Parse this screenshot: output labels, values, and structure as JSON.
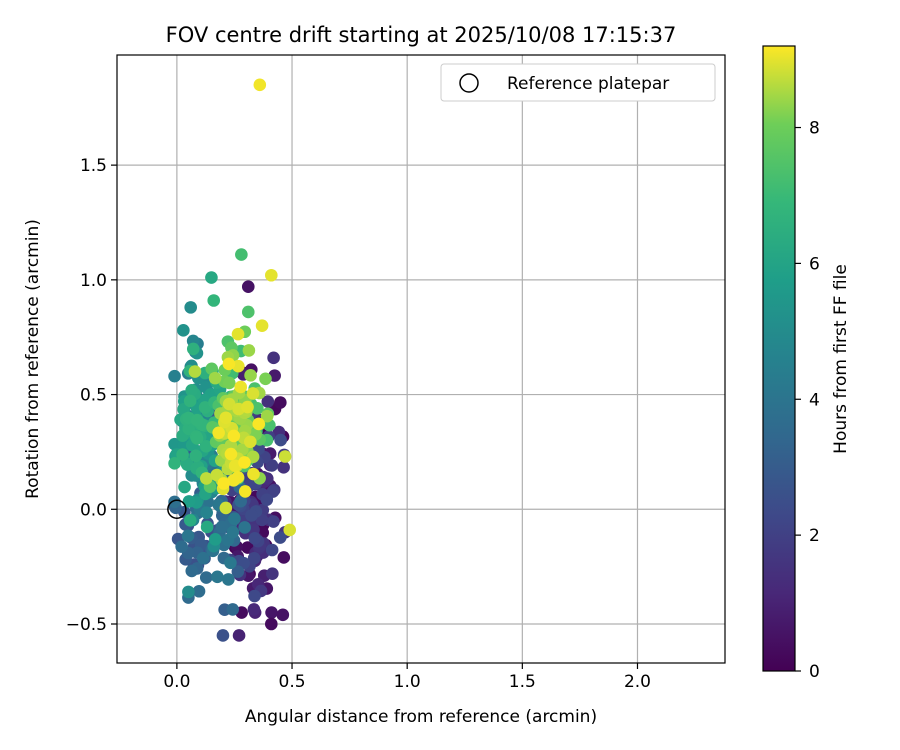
{
  "chart_data": {
    "type": "scatter",
    "title": "FOV centre drift starting at 2025/10/08 17:15:37",
    "xlabel": "Angular distance from reference (arcmin)",
    "ylabel": "Rotation from reference (arcmin)",
    "xlim": [
      -0.26,
      2.38
    ],
    "ylim": [
      -0.67,
      1.98
    ],
    "xticks": [
      0.0,
      0.5,
      1.0,
      1.5,
      2.0
    ],
    "xtick_labels": [
      "0.0",
      "0.5",
      "1.0",
      "1.5",
      "2.0"
    ],
    "yticks": [
      -0.5,
      0.0,
      0.5,
      1.0,
      1.5
    ],
    "ytick_labels": [
      "−0.5",
      "0.0",
      "0.5",
      "1.0",
      "1.5"
    ],
    "grid": true,
    "legend": {
      "position": "top-right",
      "entries": [
        "Reference platepar"
      ]
    },
    "reference_point": {
      "x": 0.0,
      "y": 0.0
    },
    "colorbar": {
      "label": "Hours from first FF file",
      "min": 0,
      "max": 9.2,
      "ticks": [
        0,
        2,
        4,
        6,
        8
      ],
      "tick_labels": [
        "0",
        "2",
        "4",
        "6",
        "8"
      ],
      "colormap": "viridis"
    },
    "outliers": [
      {
        "x": 0.36,
        "y": 1.85,
        "h": 9.1
      },
      {
        "x": 0.41,
        "y": 1.02,
        "h": 9.0
      },
      {
        "x": 0.28,
        "y": 1.11,
        "h": 7.2
      },
      {
        "x": 0.31,
        "y": 0.97,
        "h": 0.5
      },
      {
        "x": 0.15,
        "y": 1.01,
        "h": 6.2
      },
      {
        "x": 0.37,
        "y": 0.8,
        "h": 9.0
      },
      {
        "x": 0.31,
        "y": 0.86,
        "h": 7.4
      },
      {
        "x": 0.42,
        "y": 0.66,
        "h": 1.5
      },
      {
        "x": 0.05,
        "y": -0.36,
        "h": 5.0
      },
      {
        "x": 0.2,
        "y": -0.55,
        "h": 2.6
      },
      {
        "x": 0.27,
        "y": -0.55,
        "h": 1.0
      },
      {
        "x": 0.41,
        "y": -0.5,
        "h": 0.3
      },
      {
        "x": 0.46,
        "y": -0.46,
        "h": 0.5
      },
      {
        "x": 0.49,
        "y": -0.09,
        "h": 8.9
      },
      {
        "x": 0.47,
        "y": 0.23,
        "h": 8.8
      },
      {
        "x": -0.01,
        "y": 0.58,
        "h": 4.5
      },
      {
        "x": 0.16,
        "y": 0.91,
        "h": 6.8
      },
      {
        "x": 0.06,
        "y": 0.88,
        "h": 5.0
      }
    ],
    "cluster": {
      "count": 560,
      "seed": 7,
      "x_range": [
        -0.01,
        0.47
      ],
      "y_range": [
        -0.45,
        0.78
      ],
      "hour_range": [
        0,
        9.2
      ],
      "description": "dense cloud: early hours (purple) on right/lower side, mid hours (teal/green) on left, late hours (yellow) upper right"
    }
  }
}
